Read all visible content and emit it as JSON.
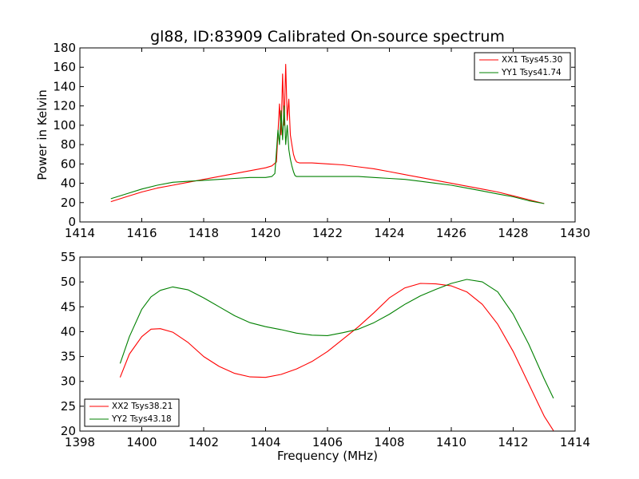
{
  "colors": {
    "red": "#ff0000",
    "green": "#008000"
  },
  "chart_data": [
    {
      "type": "line",
      "title": "gl88, ID:83909 Calibrated On-source spectrum",
      "xlabel": "",
      "ylabel": "Power in Kelvin",
      "xlim": [
        1414,
        1430
      ],
      "ylim": [
        0,
        180
      ],
      "xticks": [
        1414,
        1416,
        1418,
        1420,
        1422,
        1424,
        1426,
        1428,
        1430
      ],
      "yticks": [
        0,
        20,
        40,
        60,
        80,
        100,
        120,
        140,
        160,
        180
      ],
      "grid": false,
      "legend": "top-right",
      "series": [
        {
          "name": "XX1 Tsys45.30",
          "color": "#ff0000",
          "x": [
            1415.0,
            1415.5,
            1416.0,
            1416.5,
            1417.0,
            1417.5,
            1418.0,
            1418.5,
            1419.0,
            1419.5,
            1420.0,
            1420.2,
            1420.35,
            1420.45,
            1420.5,
            1420.55,
            1420.6,
            1420.65,
            1420.7,
            1420.75,
            1420.8,
            1420.85,
            1420.9,
            1420.95,
            1421.0,
            1421.1,
            1421.3,
            1421.5,
            1422.0,
            1422.5,
            1423.0,
            1423.5,
            1424.0,
            1424.5,
            1425.0,
            1425.5,
            1426.0,
            1426.5,
            1427.0,
            1427.5,
            1428.0,
            1428.5,
            1429.0
          ],
          "y": [
            21,
            26,
            31,
            35,
            38,
            41,
            44,
            47,
            50,
            53,
            56,
            58,
            62,
            122,
            90,
            153,
            100,
            163,
            105,
            127,
            90,
            80,
            70,
            65,
            62,
            61,
            61,
            61,
            60,
            59,
            57,
            55,
            52,
            49,
            46,
            43,
            40,
            37,
            34,
            31,
            27,
            23,
            19
          ]
        },
        {
          "name": "YY1 Tsys41.74",
          "color": "#008000",
          "x": [
            1415.0,
            1415.5,
            1416.0,
            1416.5,
            1417.0,
            1417.5,
            1418.0,
            1418.5,
            1419.0,
            1419.5,
            1420.0,
            1420.2,
            1420.3,
            1420.4,
            1420.45,
            1420.5,
            1420.55,
            1420.6,
            1420.65,
            1420.7,
            1420.75,
            1420.8,
            1420.85,
            1420.9,
            1420.95,
            1421.0,
            1421.1,
            1421.5,
            1422.0,
            1422.5,
            1423.0,
            1423.5,
            1424.0,
            1424.5,
            1425.0,
            1425.5,
            1426.0,
            1426.5,
            1427.0,
            1427.5,
            1428.0,
            1428.5,
            1429.0
          ],
          "y": [
            24,
            29,
            34,
            38,
            41,
            42,
            43,
            44,
            45,
            46,
            46,
            47,
            50,
            95,
            80,
            115,
            85,
            120,
            80,
            100,
            75,
            65,
            58,
            52,
            48,
            47,
            47,
            47,
            47,
            47,
            47,
            46,
            45,
            44,
            42,
            40,
            38,
            35,
            32,
            29,
            26,
            22,
            19
          ]
        }
      ]
    },
    {
      "type": "line",
      "title": "",
      "xlabel": "Frequency (MHz)",
      "ylabel": "",
      "xlim": [
        1398,
        1414
      ],
      "ylim": [
        20,
        55
      ],
      "xticks": [
        1398,
        1400,
        1402,
        1404,
        1406,
        1408,
        1410,
        1412,
        1414
      ],
      "yticks": [
        20,
        25,
        30,
        35,
        40,
        45,
        50,
        55
      ],
      "grid": false,
      "legend": "bottom-left",
      "series": [
        {
          "name": "XX2 Tsys38.21",
          "color": "#ff0000",
          "x": [
            1399.3,
            1399.6,
            1400.0,
            1400.3,
            1400.6,
            1401.0,
            1401.5,
            1402.0,
            1402.5,
            1403.0,
            1403.5,
            1404.0,
            1404.5,
            1405.0,
            1405.5,
            1406.0,
            1406.5,
            1407.0,
            1407.5,
            1408.0,
            1408.5,
            1409.0,
            1409.5,
            1410.0,
            1410.5,
            1411.0,
            1411.5,
            1412.0,
            1412.5,
            1413.0,
            1413.3
          ],
          "y": [
            30.8,
            35.5,
            39.0,
            40.5,
            40.6,
            39.9,
            37.8,
            35.0,
            33.0,
            31.6,
            30.9,
            30.8,
            31.4,
            32.5,
            34.0,
            36.0,
            38.5,
            41.0,
            43.8,
            46.8,
            48.8,
            49.7,
            49.6,
            49.2,
            48.0,
            45.5,
            41.5,
            36.0,
            29.5,
            23.0,
            20.1
          ]
        },
        {
          "name": "YY2 Tsys43.18",
          "color": "#008000",
          "x": [
            1399.3,
            1399.6,
            1400.0,
            1400.3,
            1400.6,
            1401.0,
            1401.5,
            1402.0,
            1402.5,
            1403.0,
            1403.5,
            1404.0,
            1404.5,
            1405.0,
            1405.5,
            1406.0,
            1406.5,
            1407.0,
            1407.5,
            1408.0,
            1408.5,
            1409.0,
            1409.5,
            1410.0,
            1410.5,
            1411.0,
            1411.5,
            1412.0,
            1412.5,
            1413.0,
            1413.3
          ],
          "y": [
            33.6,
            39.0,
            44.5,
            47.0,
            48.3,
            49.0,
            48.4,
            46.8,
            45.0,
            43.2,
            41.8,
            41.0,
            40.4,
            39.7,
            39.3,
            39.2,
            39.8,
            40.5,
            41.8,
            43.5,
            45.5,
            47.2,
            48.5,
            49.7,
            50.5,
            50.0,
            48.0,
            43.5,
            37.5,
            30.5,
            26.6
          ]
        }
      ]
    }
  ]
}
